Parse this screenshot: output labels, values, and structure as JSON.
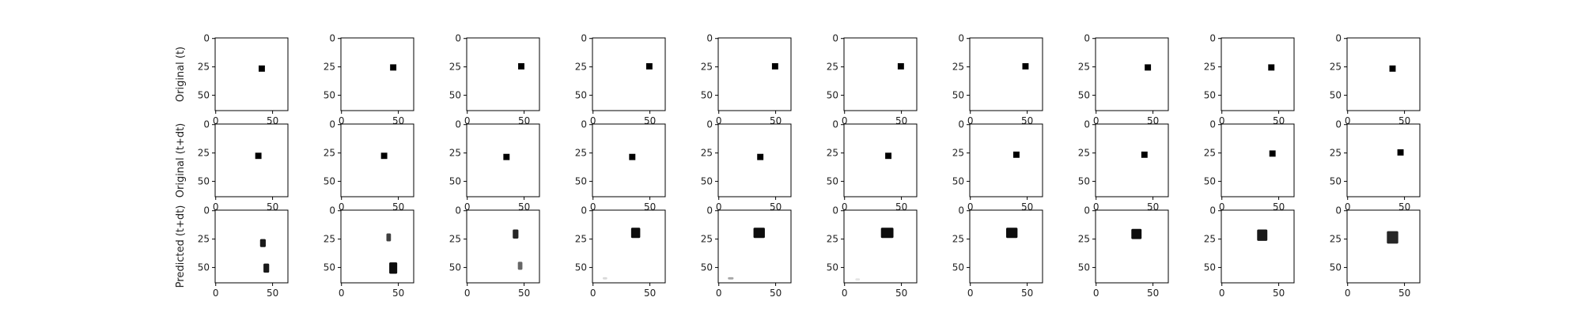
{
  "chart_data": {
    "type": "image_grid",
    "rows": 3,
    "cols": 10,
    "row_labels": [
      "Original (t)",
      "Original (t+dt)",
      "Predicted (t+dt)"
    ],
    "image_size": 64,
    "xticks": [
      "0",
      "50"
    ],
    "yticks": [
      "0",
      "25",
      "50"
    ],
    "original_t_centers": [
      [
        41,
        27
      ],
      [
        46,
        26
      ],
      [
        48,
        25
      ],
      [
        50,
        25
      ],
      [
        50,
        25
      ],
      [
        50,
        25
      ],
      [
        49,
        25
      ],
      [
        46,
        26
      ],
      [
        44,
        26
      ],
      [
        40,
        27
      ]
    ],
    "original_tdt_centers": [
      [
        38,
        28
      ],
      [
        38,
        28
      ],
      [
        35,
        29
      ],
      [
        35,
        29
      ],
      [
        37,
        29
      ],
      [
        39,
        28
      ],
      [
        41,
        27
      ],
      [
        43,
        27
      ],
      [
        45,
        26
      ],
      [
        47,
        25
      ]
    ],
    "predicted_blobs": [
      [
        {
          "cx": 42,
          "cy": 29,
          "w": 5,
          "h": 7,
          "o": 0.9
        },
        {
          "cx": 45,
          "cy": 51,
          "w": 5,
          "h": 8,
          "o": 0.9
        }
      ],
      [
        {
          "cx": 42,
          "cy": 24,
          "w": 4,
          "h": 7,
          "o": 0.75
        },
        {
          "cx": 46,
          "cy": 51,
          "w": 7,
          "h": 10,
          "o": 0.95
        }
      ],
      [
        {
          "cx": 43,
          "cy": 21,
          "w": 5,
          "h": 8,
          "o": 0.85
        },
        {
          "cx": 47,
          "cy": 49,
          "w": 4,
          "h": 7,
          "o": 0.6
        }
      ],
      [
        {
          "cx": 38,
          "cy": 20,
          "w": 8,
          "h": 9,
          "o": 0.95
        },
        {
          "cx": 11,
          "cy": 60,
          "w": 4,
          "h": 2,
          "o": 0.15
        }
      ],
      [
        {
          "cx": 36,
          "cy": 20,
          "w": 10,
          "h": 9,
          "o": 0.95
        },
        {
          "cx": 11,
          "cy": 60,
          "w": 5,
          "h": 2,
          "o": 0.35
        }
      ],
      [
        {
          "cx": 38,
          "cy": 20,
          "w": 11,
          "h": 9,
          "o": 0.95
        },
        {
          "cx": 12,
          "cy": 61,
          "w": 4,
          "h": 2,
          "o": 0.1
        }
      ],
      [
        {
          "cx": 37,
          "cy": 20,
          "w": 10,
          "h": 9,
          "o": 0.95
        }
      ],
      [
        {
          "cx": 36,
          "cy": 21,
          "w": 9,
          "h": 9,
          "o": 0.95
        }
      ],
      [
        {
          "cx": 36,
          "cy": 22,
          "w": 9,
          "h": 10,
          "o": 0.9
        }
      ],
      [
        {
          "cx": 40,
          "cy": 24,
          "w": 10,
          "h": 11,
          "o": 0.85
        }
      ]
    ]
  }
}
